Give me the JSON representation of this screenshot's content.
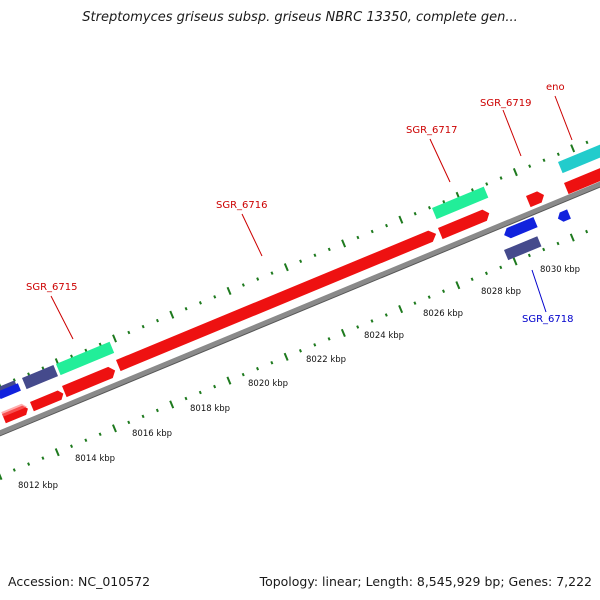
{
  "title": "Streptomyces griseus subsp. griseus NBRC 13350, complete gen...",
  "footer": {
    "accession": "Accession: NC_010572",
    "summary": "Topology: linear; Length: 8,545,929 bp; Genes: 7,222"
  },
  "colors": {
    "forward_gene": "#ee1111",
    "reverse_gene": "#1122dd",
    "forward_feature_green": "#22ee99",
    "forward_feature_teal": "#22cccc",
    "reverse_feature_slate": "#454a8c",
    "backbone": "#8a8a8a",
    "tick": "#1e7a1e",
    "label_forward": "#cc0000",
    "label_reverse": "#0000cc"
  },
  "scale_labels": [
    "8012 kbp",
    "8014 kbp",
    "8016 kbp",
    "8018 kbp",
    "8020 kbp",
    "8022 kbp",
    "8024 kbp",
    "8026 kbp",
    "8028 kbp",
    "8030 kbp"
  ],
  "gene_labels": [
    {
      "name": "SGR_6715",
      "strand": "forward"
    },
    {
      "name": "SGR_6716",
      "strand": "forward"
    },
    {
      "name": "SGR_6717",
      "strand": "forward"
    },
    {
      "name": "SGR_6719",
      "strand": "forward"
    },
    {
      "name": "eno",
      "strand": "forward"
    },
    {
      "name": "SGR_6718",
      "strand": "reverse"
    }
  ]
}
